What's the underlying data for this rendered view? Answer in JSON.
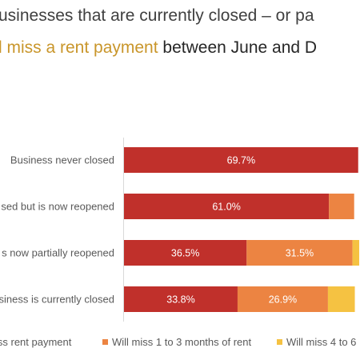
{
  "chart_data": {
    "type": "bar",
    "orientation": "horizontal",
    "stacked": true,
    "title_lines": [
      {
        "segments": [
          {
            "text": "usinesses that are currently closed – or pa",
            "color": "#404040"
          }
        ]
      },
      {
        "segments": [
          {
            "text": "l miss a rent payment",
            "color": "#C9962B"
          },
          {
            "text": " between June and D",
            "color": "#262626"
          }
        ]
      }
    ],
    "categories": [
      "Business never closed",
      "sed but is now reopened",
      "s now partially reopened",
      "siness is currently closed"
    ],
    "series": [
      {
        "name": "iss rent payment",
        "color": "#C0302B",
        "values": [
          69.7,
          61.0,
          36.5,
          33.8
        ],
        "labels": [
          "69.7%",
          "61.0%",
          "36.5%",
          "33.8%"
        ]
      },
      {
        "name": "Will miss 1 to 3 months of rent",
        "color": "#EC8442",
        "values": [
          null,
          7.5,
          31.5,
          26.9
        ],
        "labels": [
          "",
          "",
          "31.5%",
          "26.9%"
        ]
      },
      {
        "name": "Will miss 4 to 6",
        "color": "#F5C242",
        "values": [
          null,
          null,
          2.0,
          8.0
        ],
        "labels": [
          "",
          "",
          "",
          ""
        ]
      }
    ],
    "legend_position": "bottom",
    "grid": false
  }
}
